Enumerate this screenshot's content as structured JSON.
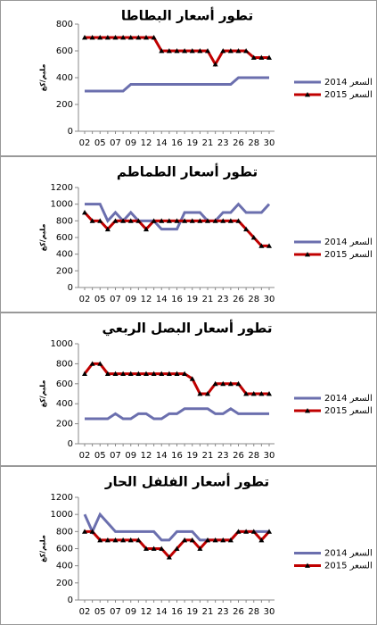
{
  "chart_data": [
    {
      "type": "line",
      "title": "تطور أسعار البطاطا",
      "y_label": "مليم/كغ",
      "categories": [
        "02",
        null,
        "05",
        null,
        "07",
        null,
        "09",
        null,
        "12",
        null,
        "14",
        null,
        "16",
        null,
        "19",
        null,
        "21",
        null,
        "23",
        null,
        "26",
        null,
        "28",
        null,
        "30"
      ],
      "ylim": [
        0,
        800
      ],
      "yticks": [
        0,
        200,
        400,
        600,
        800
      ],
      "grid": false,
      "series": [
        {
          "name": "السعر 2014",
          "color": "#6b6fae",
          "values": [
            300,
            300,
            300,
            300,
            300,
            300,
            350,
            350,
            350,
            350,
            350,
            350,
            350,
            350,
            350,
            350,
            350,
            350,
            350,
            350,
            400,
            400,
            400,
            400,
            400
          ]
        },
        {
          "name": "السعر 2015",
          "color": "#c00000",
          "marker": "triangle",
          "values": [
            700,
            700,
            700,
            700,
            700,
            700,
            700,
            700,
            700,
            700,
            600,
            600,
            600,
            600,
            600,
            600,
            600,
            500,
            600,
            600,
            600,
            600,
            550,
            550,
            550
          ]
        }
      ]
    },
    {
      "type": "line",
      "title": "تطور أسعار الطماطم",
      "y_label": "مليم/كغ",
      "categories": [
        "02",
        null,
        "05",
        null,
        "07",
        null,
        "09",
        null,
        "12",
        null,
        "14",
        null,
        "16",
        null,
        "19",
        null,
        "21",
        null,
        "23",
        null,
        "26",
        null,
        "28",
        null,
        "30"
      ],
      "ylim": [
        0,
        1200
      ],
      "yticks": [
        0,
        200,
        400,
        600,
        800,
        1000,
        1200
      ],
      "grid": false,
      "series": [
        {
          "name": "السعر 2014",
          "color": "#6b6fae",
          "values": [
            1000,
            1000,
            1000,
            800,
            900,
            800,
            900,
            800,
            800,
            800,
            700,
            700,
            700,
            900,
            900,
            900,
            800,
            800,
            900,
            900,
            1000,
            900,
            900,
            900,
            1000
          ]
        },
        {
          "name": "السعر 2015",
          "color": "#c00000",
          "marker": "triangle",
          "values": [
            900,
            800,
            800,
            700,
            800,
            800,
            800,
            800,
            700,
            800,
            800,
            800,
            800,
            800,
            800,
            800,
            800,
            800,
            800,
            800,
            800,
            700,
            600,
            500,
            500
          ]
        }
      ]
    },
    {
      "type": "line",
      "title": "تطور أسعار البصل الربعي",
      "y_label": "مليم/كغ",
      "categories": [
        "02",
        null,
        "05",
        null,
        "07",
        null,
        "09",
        null,
        "12",
        null,
        "14",
        null,
        "16",
        null,
        "19",
        null,
        "21",
        null,
        "23",
        null,
        "26",
        null,
        "28",
        null,
        "30"
      ],
      "ylim": [
        0,
        1000
      ],
      "yticks": [
        0,
        200,
        400,
        600,
        800,
        1000
      ],
      "grid": false,
      "series": [
        {
          "name": "السعر 2014",
          "color": "#6b6fae",
          "values": [
            250,
            250,
            250,
            250,
            300,
            250,
            250,
            300,
            300,
            250,
            250,
            300,
            300,
            350,
            350,
            350,
            350,
            300,
            300,
            350,
            300,
            300,
            300,
            300,
            300
          ]
        },
        {
          "name": "السعر 2015",
          "color": "#c00000",
          "marker": "triangle",
          "values": [
            700,
            800,
            800,
            700,
            700,
            700,
            700,
            700,
            700,
            700,
            700,
            700,
            700,
            700,
            650,
            500,
            500,
            600,
            600,
            600,
            600,
            500,
            500,
            500,
            500
          ]
        }
      ]
    },
    {
      "type": "line",
      "title": "تطور أسعار الفلفل الحار",
      "y_label": "مليم/كغ",
      "categories": [
        "02",
        null,
        "05",
        null,
        "07",
        null,
        "09",
        null,
        "12",
        null,
        "14",
        null,
        "16",
        null,
        "19",
        null,
        "21",
        null,
        "23",
        null,
        "26",
        null,
        "28",
        null,
        "30"
      ],
      "ylim": [
        0,
        1200
      ],
      "yticks": [
        0,
        200,
        400,
        600,
        800,
        1000,
        1200
      ],
      "grid": false,
      "series": [
        {
          "name": "السعر 2014",
          "color": "#6b6fae",
          "values": [
            1000,
            800,
            1000,
            900,
            800,
            800,
            800,
            800,
            800,
            800,
            700,
            700,
            800,
            800,
            800,
            700,
            700,
            700,
            700,
            700,
            800,
            800,
            800,
            800,
            800
          ]
        },
        {
          "name": "السعر 2015",
          "color": "#c00000",
          "marker": "triangle",
          "values": [
            800,
            800,
            700,
            700,
            700,
            700,
            700,
            700,
            600,
            600,
            600,
            500,
            600,
            700,
            700,
            600,
            700,
            700,
            700,
            700,
            800,
            800,
            800,
            700,
            800
          ]
        }
      ]
    }
  ]
}
